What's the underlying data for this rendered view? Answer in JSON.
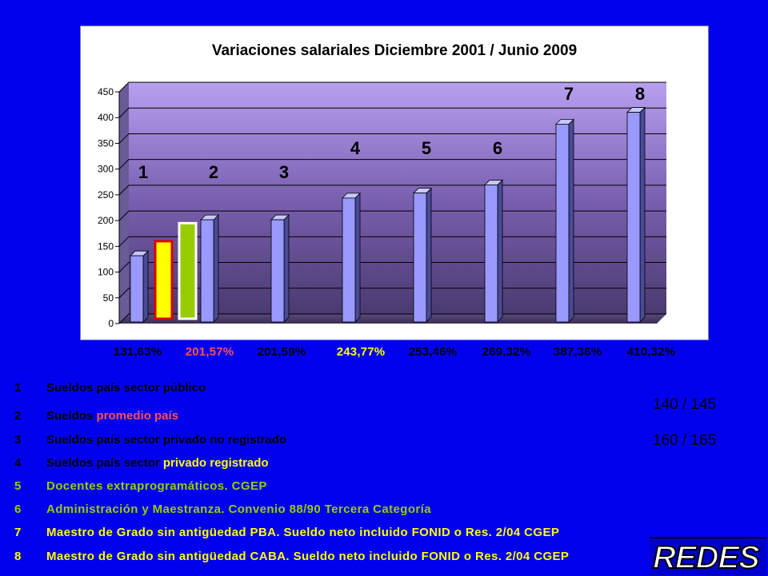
{
  "chart_data": {
    "type": "bar",
    "title": "Variaciones salariales Diciembre 2001 / Junio 2009",
    "ylim": [
      0,
      450
    ],
    "yticks": [
      "0",
      "50",
      "100",
      "150",
      "200",
      "250",
      "300",
      "350",
      "400",
      "450"
    ],
    "categories": [
      "1",
      "2",
      "3",
      "4",
      "5",
      "6",
      "7",
      "8"
    ],
    "values": [
      131.63,
      201.57,
      201.59,
      243.77,
      253.46,
      269.32,
      387.36,
      410.32
    ],
    "value_labels": [
      "131,63%",
      "201,57%",
      "201,59%",
      "243,77%",
      "253,46%",
      "269,32%",
      "387,36%",
      "410,32%"
    ],
    "value_label_colors": [
      "#000000",
      "#ff5050",
      "#000000",
      "#ffff00",
      "#000000",
      "#000000",
      "#000000",
      "#000000"
    ],
    "overlay_markers": [
      {
        "value": 160,
        "fill": "#ffff00",
        "stroke": "#dd0000"
      },
      {
        "value": 195,
        "fill": "#99cc00",
        "stroke": "#ffffff"
      }
    ],
    "bar_color": "#9999ff",
    "grid": true,
    "legend": "none"
  },
  "legend_items": [
    {
      "num": "1",
      "parts": [
        {
          "t": "Sueldos país sector público",
          "c": "#000000"
        }
      ]
    },
    {
      "num": "2",
      "parts": [
        {
          "t": "Sueldos ",
          "c": "#000000"
        },
        {
          "t": "promedio país",
          "c": "#ff5050"
        }
      ]
    },
    {
      "num": "3",
      "parts": [
        {
          "t": "Sueldos país sector privado no registrado",
          "c": "#000000"
        }
      ]
    },
    {
      "num": "4",
      "parts": [
        {
          "t": "Sueldos país sector ",
          "c": "#000000"
        },
        {
          "t": "privado registrado",
          "c": "#ffff00"
        }
      ]
    },
    {
      "num": "5",
      "parts": [
        {
          "t": "Docentes extraprogramáticos. CGEP",
          "c": "#99cc00"
        }
      ]
    },
    {
      "num": "6",
      "parts": [
        {
          "t": "Administración y Maestranza. Convenio 88/90 Tercera Categoría",
          "c": "#99cc00"
        }
      ]
    },
    {
      "num": "7",
      "parts": [
        {
          "t": "Maestro de Grado sin antigüedad PBA. Sueldo neto incluido FONID o Res. 2/04 CGEP",
          "c": "#ffff00"
        }
      ]
    },
    {
      "num": "8",
      "parts": [
        {
          "t": "Maestro de Grado sin antigüedad CABA. Sueldo neto incluido FONID o Res. 2/04 CGEP",
          "c": "#ffff00"
        }
      ]
    }
  ],
  "side_notes": [
    "140 / 145",
    "160 / 165"
  ],
  "logo_text": "REDES"
}
